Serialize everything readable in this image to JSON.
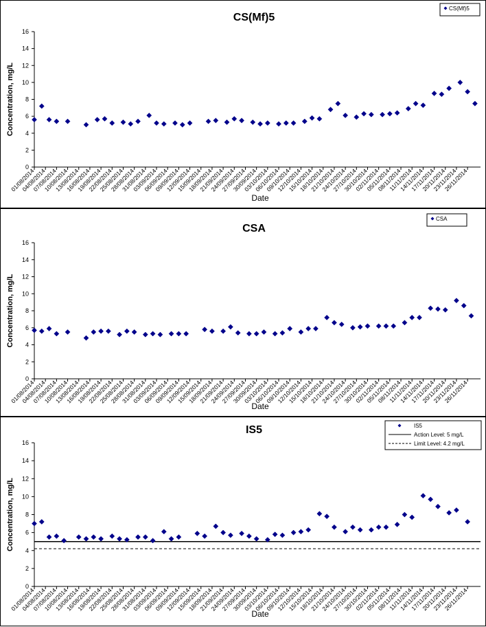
{
  "chart_data": [
    {
      "type": "scatter",
      "title": "CS(Mf)5",
      "xlabel": "Date",
      "ylabel": "Concentration, mg/L",
      "ylim": [
        0,
        16
      ],
      "yticks": [
        0,
        2,
        4,
        6,
        8,
        10,
        12,
        14,
        16
      ],
      "x_tick_labels": [
        "01/08/2014",
        "04/08/2014",
        "07/08/2014",
        "10/08/2014",
        "13/08/2014",
        "16/08/2014",
        "19/08/2014",
        "22/08/2014",
        "25/08/2014",
        "28/08/2014",
        "31/08/2014",
        "03/09/2014",
        "06/09/2014",
        "09/09/2014",
        "12/09/2014",
        "15/09/2014",
        "18/09/2014",
        "21/09/2014",
        "24/09/2014",
        "27/09/2014",
        "30/09/2014",
        "03/10/2014",
        "06/10/2014",
        "09/10/2014",
        "12/10/2014",
        "15/10/2014",
        "18/10/2014",
        "21/10/2014",
        "24/10/2014",
        "27/10/2014",
        "30/10/2014",
        "02/11/2014",
        "05/11/2014",
        "08/11/2014",
        "11/11/2014",
        "14/11/2014",
        "17/11/2014",
        "20/11/2014",
        "23/11/2014",
        "26/11/2014"
      ],
      "legend": {
        "position": "top-right",
        "entries": [
          "CS(Mf)5"
        ]
      },
      "grid": false,
      "series": [
        {
          "name": "CS(Mf)5",
          "marker": "diamond",
          "color": "#00008B",
          "points": [
            [
              "2014-08-01",
              5.6
            ],
            [
              "2014-08-03",
              7.2
            ],
            [
              "2014-08-05",
              5.6
            ],
            [
              "2014-08-07",
              5.4
            ],
            [
              "2014-08-10",
              5.4
            ],
            [
              "2014-08-15",
              5.0
            ],
            [
              "2014-08-18",
              5.6
            ],
            [
              "2014-08-20",
              5.7
            ],
            [
              "2014-08-22",
              5.2
            ],
            [
              "2014-08-25",
              5.3
            ],
            [
              "2014-08-27",
              5.1
            ],
            [
              "2014-08-29",
              5.4
            ],
            [
              "2014-09-01",
              6.1
            ],
            [
              "2014-09-03",
              5.2
            ],
            [
              "2014-09-05",
              5.1
            ],
            [
              "2014-09-08",
              5.2
            ],
            [
              "2014-09-10",
              5.0
            ],
            [
              "2014-09-12",
              5.2
            ],
            [
              "2014-09-17",
              5.4
            ],
            [
              "2014-09-19",
              5.5
            ],
            [
              "2014-09-22",
              5.3
            ],
            [
              "2014-09-24",
              5.7
            ],
            [
              "2014-09-26",
              5.5
            ],
            [
              "2014-09-29",
              5.3
            ],
            [
              "2014-10-01",
              5.1
            ],
            [
              "2014-10-03",
              5.2
            ],
            [
              "2014-10-06",
              5.1
            ],
            [
              "2014-10-08",
              5.2
            ],
            [
              "2014-10-10",
              5.2
            ],
            [
              "2014-10-13",
              5.4
            ],
            [
              "2014-10-15",
              5.8
            ],
            [
              "2014-10-17",
              5.7
            ],
            [
              "2014-10-20",
              6.8
            ],
            [
              "2014-10-22",
              7.5
            ],
            [
              "2014-10-24",
              6.1
            ],
            [
              "2014-10-27",
              5.9
            ],
            [
              "2014-10-29",
              6.3
            ],
            [
              "2014-10-31",
              6.2
            ],
            [
              "2014-11-03",
              6.2
            ],
            [
              "2014-11-05",
              6.3
            ],
            [
              "2014-11-07",
              6.4
            ],
            [
              "2014-11-10",
              6.9
            ],
            [
              "2014-11-12",
              7.5
            ],
            [
              "2014-11-14",
              7.3
            ],
            [
              "2014-11-17",
              8.7
            ],
            [
              "2014-11-19",
              8.6
            ],
            [
              "2014-11-21",
              9.3
            ],
            [
              "2014-11-24",
              10.0
            ],
            [
              "2014-11-26",
              8.9
            ],
            [
              "2014-11-28",
              7.5
            ]
          ]
        }
      ]
    },
    {
      "type": "scatter",
      "title": "CSA",
      "xlabel": "Date",
      "ylabel": "Concentration, mg/L",
      "ylim": [
        0,
        16
      ],
      "yticks": [
        0,
        2,
        4,
        6,
        8,
        10,
        12,
        14,
        16
      ],
      "x_tick_labels": [
        "01/08/2014",
        "04/08/2014",
        "07/08/2014",
        "10/08/2014",
        "13/08/2014",
        "16/08/2014",
        "19/08/2014",
        "22/08/2014",
        "25/08/2014",
        "28/08/2014",
        "31/08/2014",
        "03/09/2014",
        "06/09/2014",
        "09/09/2014",
        "12/09/2014",
        "15/09/2014",
        "18/09/2014",
        "21/09/2014",
        "24/09/2014",
        "27/09/2014",
        "30/09/2014",
        "03/10/2014",
        "06/10/2014",
        "09/10/2014",
        "12/10/2014",
        "15/10/2014",
        "18/10/2014",
        "21/10/2014",
        "24/10/2014",
        "27/10/2014",
        "30/10/2014",
        "02/11/2014",
        "05/11/2014",
        "08/11/2014",
        "11/11/2014",
        "14/11/2014",
        "17/11/2014",
        "20/11/2014",
        "23/11/2014",
        "26/11/2014"
      ],
      "legend": {
        "position": "top-right",
        "entries": [
          "CSA"
        ]
      },
      "grid": false,
      "series": [
        {
          "name": "CSA",
          "marker": "diamond",
          "color": "#00008B",
          "points": [
            [
              "2014-08-01",
              5.7
            ],
            [
              "2014-08-03",
              5.6
            ],
            [
              "2014-08-05",
              5.9
            ],
            [
              "2014-08-07",
              5.3
            ],
            [
              "2014-08-10",
              5.5
            ],
            [
              "2014-08-15",
              4.8
            ],
            [
              "2014-08-17",
              5.5
            ],
            [
              "2014-08-19",
              5.6
            ],
            [
              "2014-08-21",
              5.6
            ],
            [
              "2014-08-24",
              5.2
            ],
            [
              "2014-08-26",
              5.6
            ],
            [
              "2014-08-28",
              5.5
            ],
            [
              "2014-08-31",
              5.2
            ],
            [
              "2014-09-02",
              5.3
            ],
            [
              "2014-09-04",
              5.2
            ],
            [
              "2014-09-07",
              5.3
            ],
            [
              "2014-09-09",
              5.3
            ],
            [
              "2014-09-11",
              5.3
            ],
            [
              "2014-09-16",
              5.8
            ],
            [
              "2014-09-18",
              5.6
            ],
            [
              "2014-09-21",
              5.6
            ],
            [
              "2014-09-23",
              6.1
            ],
            [
              "2014-09-25",
              5.4
            ],
            [
              "2014-09-28",
              5.3
            ],
            [
              "2014-09-30",
              5.3
            ],
            [
              "2014-10-02",
              5.5
            ],
            [
              "2014-10-05",
              5.3
            ],
            [
              "2014-10-07",
              5.4
            ],
            [
              "2014-10-09",
              5.9
            ],
            [
              "2014-10-12",
              5.5
            ],
            [
              "2014-10-14",
              5.9
            ],
            [
              "2014-10-16",
              5.9
            ],
            [
              "2014-10-19",
              7.2
            ],
            [
              "2014-10-21",
              6.6
            ],
            [
              "2014-10-23",
              6.4
            ],
            [
              "2014-10-26",
              6.0
            ],
            [
              "2014-10-28",
              6.1
            ],
            [
              "2014-10-30",
              6.2
            ],
            [
              "2014-11-02",
              6.2
            ],
            [
              "2014-11-04",
              6.2
            ],
            [
              "2014-11-06",
              6.2
            ],
            [
              "2014-11-09",
              6.6
            ],
            [
              "2014-11-11",
              7.2
            ],
            [
              "2014-11-13",
              7.2
            ],
            [
              "2014-11-16",
              8.3
            ],
            [
              "2014-11-18",
              8.2
            ],
            [
              "2014-11-20",
              8.1
            ],
            [
              "2014-11-23",
              9.2
            ],
            [
              "2014-11-25",
              8.6
            ],
            [
              "2014-11-27",
              7.4
            ]
          ]
        }
      ]
    },
    {
      "type": "scatter",
      "title": "IS5",
      "xlabel": "Date",
      "ylabel": "Concentration, mg/L",
      "ylim": [
        0,
        16
      ],
      "yticks": [
        0,
        2,
        4,
        6,
        8,
        10,
        12,
        14,
        16
      ],
      "x_tick_labels": [
        "01/08/2014",
        "04/08/2014",
        "07/08/2014",
        "10/08/2014",
        "13/08/2014",
        "16/08/2014",
        "19/08/2014",
        "22/08/2014",
        "25/08/2014",
        "28/08/2014",
        "31/08/2014",
        "03/09/2014",
        "06/09/2014",
        "09/09/2014",
        "12/09/2014",
        "15/09/2014",
        "18/09/2014",
        "21/09/2014",
        "24/09/2014",
        "27/09/2014",
        "30/09/2014",
        "03/10/2014",
        "06/10/2014",
        "09/10/2014",
        "12/10/2014",
        "15/10/2014",
        "18/10/2014",
        "21/10/2014",
        "24/10/2014",
        "27/10/2014",
        "30/10/2014",
        "02/11/2014",
        "05/11/2014",
        "08/11/2014",
        "11/11/2014",
        "14/11/2014",
        "17/11/2014",
        "20/11/2014",
        "23/11/2014",
        "26/11/2014"
      ],
      "legend": {
        "position": "top-right",
        "entries": [
          "IS5",
          "Action Level: 5 mg/L",
          "Limit Level: 4.2 mg/L"
        ]
      },
      "grid": false,
      "reference_lines": [
        {
          "name": "Action Level: 5 mg/L",
          "y": 5,
          "style": "solid",
          "color": "#000000"
        },
        {
          "name": "Limit Level: 4.2 mg/L",
          "y": 4.2,
          "style": "dashed",
          "color": "#000000"
        }
      ],
      "series": [
        {
          "name": "IS5",
          "marker": "diamond",
          "color": "#00008B",
          "points": [
            [
              "2014-08-01",
              7.0
            ],
            [
              "2014-08-03",
              7.2
            ],
            [
              "2014-08-05",
              5.5
            ],
            [
              "2014-08-07",
              5.6
            ],
            [
              "2014-08-09",
              5.1
            ],
            [
              "2014-08-13",
              5.5
            ],
            [
              "2014-08-15",
              5.3
            ],
            [
              "2014-08-17",
              5.5
            ],
            [
              "2014-08-19",
              5.3
            ],
            [
              "2014-08-22",
              5.6
            ],
            [
              "2014-08-24",
              5.3
            ],
            [
              "2014-08-26",
              5.2
            ],
            [
              "2014-08-29",
              5.5
            ],
            [
              "2014-08-31",
              5.5
            ],
            [
              "2014-09-02",
              5.1
            ],
            [
              "2014-09-05",
              6.1
            ],
            [
              "2014-09-07",
              5.3
            ],
            [
              "2014-09-09",
              5.5
            ],
            [
              "2014-09-14",
              5.9
            ],
            [
              "2014-09-16",
              5.6
            ],
            [
              "2014-09-19",
              6.7
            ],
            [
              "2014-09-21",
              6.0
            ],
            [
              "2014-09-23",
              5.7
            ],
            [
              "2014-09-26",
              5.9
            ],
            [
              "2014-09-28",
              5.6
            ],
            [
              "2014-09-30",
              5.3
            ],
            [
              "2014-10-03",
              5.2
            ],
            [
              "2014-10-05",
              5.8
            ],
            [
              "2014-10-07",
              5.7
            ],
            [
              "2014-10-10",
              6.0
            ],
            [
              "2014-10-12",
              6.1
            ],
            [
              "2014-10-14",
              6.3
            ],
            [
              "2014-10-17",
              8.1
            ],
            [
              "2014-10-19",
              7.8
            ],
            [
              "2014-10-21",
              6.6
            ],
            [
              "2014-10-24",
              6.1
            ],
            [
              "2014-10-26",
              6.6
            ],
            [
              "2014-10-28",
              6.3
            ],
            [
              "2014-10-31",
              6.3
            ],
            [
              "2014-11-02",
              6.6
            ],
            [
              "2014-11-04",
              6.6
            ],
            [
              "2014-11-07",
              6.9
            ],
            [
              "2014-11-09",
              8.0
            ],
            [
              "2014-11-11",
              7.7
            ],
            [
              "2014-11-14",
              10.1
            ],
            [
              "2014-11-16",
              9.7
            ],
            [
              "2014-11-18",
              8.9
            ],
            [
              "2014-11-21",
              8.2
            ],
            [
              "2014-11-23",
              8.5
            ],
            [
              "2014-11-26",
              7.2
            ]
          ]
        }
      ]
    }
  ]
}
